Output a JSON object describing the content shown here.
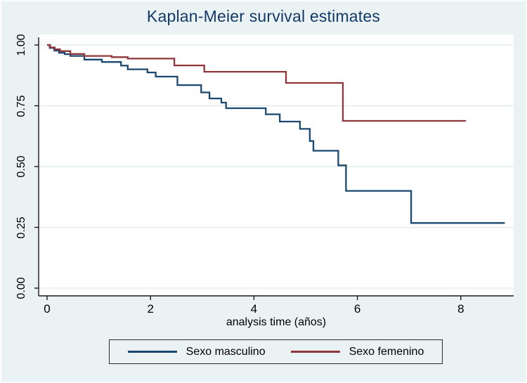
{
  "title": "Kaplan-Meier survival estimates",
  "x_axis_title": "analysis time (años)",
  "colors": {
    "background": "#eaf2f3",
    "plot_background": "#ffffff",
    "gridline": "#dfeaec",
    "axis": "#1a1a1a",
    "title_text": "#143a69",
    "masculino_line": "#1a476f",
    "femenino_line": "#90353b"
  },
  "chart_data": {
    "type": "line",
    "subtype": "step",
    "title": "Kaplan-Meier survival estimates",
    "xlabel": "analysis time (años)",
    "ylabel": "",
    "xlim": [
      0,
      9.03
    ],
    "ylim": [
      0,
      1
    ],
    "x_ticks": [
      0,
      2,
      4,
      6,
      8
    ],
    "y_ticks": [
      1.0,
      0.75,
      0.5,
      0.25,
      0.0
    ],
    "y_tick_labels": [
      "1.00",
      "0.75",
      "0.50",
      "0.25",
      "0.00"
    ],
    "grid": "horizontal",
    "legend_position": "bottom",
    "series": [
      {
        "name": "Sexo masculino",
        "color": "#1a476f",
        "points": [
          [
            0,
            1.0
          ],
          [
            0.05,
            0.988
          ],
          [
            0.14,
            0.977
          ],
          [
            0.23,
            0.968
          ],
          [
            0.34,
            0.962
          ],
          [
            0.45,
            0.955
          ],
          [
            0.72,
            0.94
          ],
          [
            1.06,
            0.93
          ],
          [
            1.43,
            0.915
          ],
          [
            1.56,
            0.9
          ],
          [
            1.94,
            0.887
          ],
          [
            2.1,
            0.87
          ],
          [
            2.52,
            0.835
          ],
          [
            2.98,
            0.805
          ],
          [
            3.14,
            0.78
          ],
          [
            3.37,
            0.763
          ],
          [
            3.46,
            0.74
          ],
          [
            4.23,
            0.715
          ],
          [
            4.5,
            0.685
          ],
          [
            4.89,
            0.655
          ],
          [
            5.08,
            0.605
          ],
          [
            5.15,
            0.565
          ],
          [
            5.63,
            0.505
          ],
          [
            5.78,
            0.4
          ],
          [
            7.04,
            0.268
          ],
          [
            8.85,
            0.268
          ]
        ]
      },
      {
        "name": "Sexo femenino",
        "color": "#90353b",
        "points": [
          [
            0,
            1.0
          ],
          [
            0.06,
            0.99
          ],
          [
            0.15,
            0.982
          ],
          [
            0.25,
            0.975
          ],
          [
            0.45,
            0.963
          ],
          [
            0.72,
            0.955
          ],
          [
            1.25,
            0.95
          ],
          [
            1.56,
            0.944
          ],
          [
            2.46,
            0.916
          ],
          [
            3.04,
            0.89
          ],
          [
            4.62,
            0.844
          ],
          [
            5.72,
            0.688
          ],
          [
            8.1,
            0.688
          ]
        ]
      }
    ]
  }
}
